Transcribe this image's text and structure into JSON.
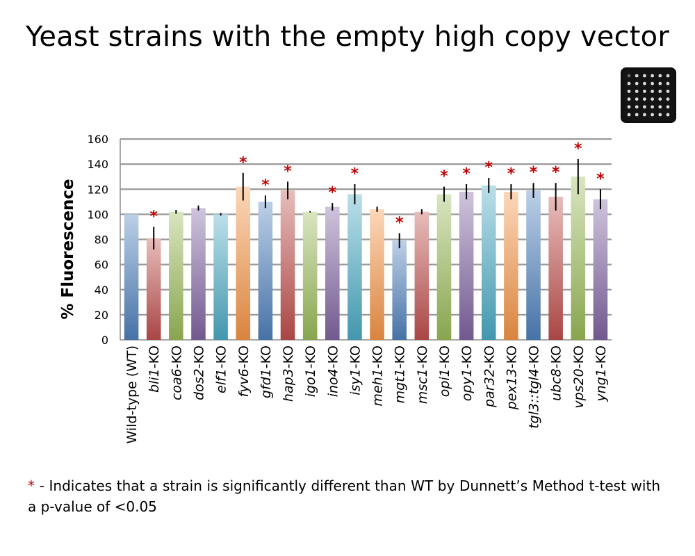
{
  "slide": {
    "title": "Yeast strains with the empty high copy vector",
    "plate_image": "yeast-plate-photo"
  },
  "footnote": {
    "marker": "*",
    "text": " - Indicates that a strain is significantly different than WT by Dunnett’s Method t-test with a p-value of <0.05"
  },
  "colors": {
    "significance_star": "#c00000",
    "gridline": "#9a9a9a"
  },
  "chart_data": {
    "type": "bar",
    "ylabel": "% Fluorescence",
    "ylim": [
      0,
      160
    ],
    "yticks": [
      0,
      20,
      40,
      60,
      80,
      100,
      120,
      140,
      160
    ],
    "grid": true,
    "significance_marker": "*",
    "bars": [
      {
        "label": "Wild-type (WT)",
        "italic": "",
        "suffix": "",
        "value": 100,
        "error": 0,
        "significant": false,
        "color": "#4f81bd"
      },
      {
        "label": "bli1-KO",
        "italic": "bli1",
        "suffix": "-KO",
        "value": 81,
        "error": 9,
        "significant": true,
        "color": "#c0504d"
      },
      {
        "label": "coa6-KO",
        "italic": "coa6",
        "suffix": "-KO",
        "value": 102,
        "error": 1.5,
        "significant": false,
        "color": "#9bbb59"
      },
      {
        "label": "dos2-KO",
        "italic": "dos2",
        "suffix": "-KO",
        "value": 105,
        "error": 2,
        "significant": false,
        "color": "#8064a2"
      },
      {
        "label": "elf1-KO",
        "italic": "elf1",
        "suffix": "-KO",
        "value": 100,
        "error": 1,
        "significant": false,
        "color": "#4bacc6"
      },
      {
        "label": "fyv6-KO",
        "italic": "fyv6",
        "suffix": "-KO",
        "value": 122,
        "error": 11,
        "significant": true,
        "color": "#f79646"
      },
      {
        "label": "gfd1-KO",
        "italic": "gfd1",
        "suffix": "-KO",
        "value": 110,
        "error": 5,
        "significant": true,
        "color": "#4f81bd"
      },
      {
        "label": "hap3-KO",
        "italic": "hap3",
        "suffix": "-KO",
        "value": 119,
        "error": 7,
        "significant": true,
        "color": "#c0504d"
      },
      {
        "label": "igo1-KO",
        "italic": "igo1",
        "suffix": "-KO",
        "value": 102,
        "error": 0.5,
        "significant": false,
        "color": "#9bbb59"
      },
      {
        "label": "ino4-KO",
        "italic": "ino4",
        "suffix": "-KO",
        "value": 106,
        "error": 3,
        "significant": true,
        "color": "#8064a2"
      },
      {
        "label": "isy1-KO",
        "italic": "isy1",
        "suffix": "-KO",
        "value": 116,
        "error": 8,
        "significant": true,
        "color": "#4bacc6"
      },
      {
        "label": "meh1-KO",
        "italic": "meh1",
        "suffix": "-KO",
        "value": 104,
        "error": 2,
        "significant": false,
        "color": "#f79646"
      },
      {
        "label": "mgt1-KO",
        "italic": "mgt1",
        "suffix": "-KO",
        "value": 79,
        "error": 6,
        "significant": true,
        "color": "#4f81bd"
      },
      {
        "label": "msc1-KO",
        "italic": "msc1",
        "suffix": "-KO",
        "value": 102,
        "error": 2,
        "significant": false,
        "color": "#c0504d"
      },
      {
        "label": "opi1-KO",
        "italic": "opi1",
        "suffix": "-KO",
        "value": 116,
        "error": 6,
        "significant": true,
        "color": "#9bbb59"
      },
      {
        "label": "opy1-KO",
        "italic": "opy1",
        "suffix": "-KO",
        "value": 118,
        "error": 6,
        "significant": true,
        "color": "#8064a2"
      },
      {
        "label": "par32-KO",
        "italic": "par32",
        "suffix": "-KO",
        "value": 123,
        "error": 6,
        "significant": true,
        "color": "#4bacc6"
      },
      {
        "label": "pex13-KO",
        "italic": "pex13",
        "suffix": "-KO",
        "value": 118,
        "error": 6,
        "significant": true,
        "color": "#f79646"
      },
      {
        "label": "tgl3::tgl4-KO",
        "italic": "tgl3::tgl4",
        "suffix": "-KO",
        "value": 119,
        "error": 6,
        "significant": true,
        "color": "#4f81bd"
      },
      {
        "label": "ubc8-KO",
        "italic": "ubc8",
        "suffix": "-KO",
        "value": 114,
        "error": 11,
        "significant": true,
        "color": "#c0504d"
      },
      {
        "label": "vps20-KO",
        "italic": "vps20",
        "suffix": "-KO",
        "value": 130,
        "error": 14,
        "significant": true,
        "color": "#9bbb59"
      },
      {
        "label": "yng1-KO",
        "italic": "yng1",
        "suffix": "-KO",
        "value": 112,
        "error": 8,
        "significant": true,
        "color": "#8064a2"
      }
    ]
  }
}
